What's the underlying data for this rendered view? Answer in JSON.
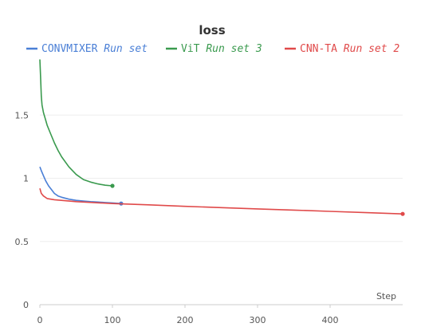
{
  "chart_data": {
    "type": "line",
    "title": "loss",
    "xlabel": "Step",
    "ylabel": "",
    "xlim": [
      0,
      500
    ],
    "ylim": [
      0,
      2
    ],
    "x_ticks": [
      0,
      100,
      200,
      300,
      400
    ],
    "y_ticks": [
      0,
      0.5,
      1,
      1.5
    ],
    "x_tick_labels": [
      "0",
      "100",
      "200",
      "300",
      "400"
    ],
    "y_tick_labels": [
      "0",
      "0.5",
      "1",
      "1.5"
    ],
    "grid": true,
    "legend_position": "top",
    "series": [
      {
        "name": "CONVMIXER",
        "run": "Run set",
        "color": "#4a7fd6",
        "x": [
          0,
          2,
          5,
          8,
          12,
          16,
          20,
          25,
          30,
          40,
          50,
          60,
          70,
          80,
          90,
          100,
          112
        ],
        "y": [
          1.09,
          1.06,
          1.02,
          0.98,
          0.94,
          0.91,
          0.88,
          0.86,
          0.85,
          0.835,
          0.825,
          0.82,
          0.815,
          0.812,
          0.808,
          0.805,
          0.8
        ]
      },
      {
        "name": "ViT",
        "run": "Run set 3",
        "color": "#3a9a4e",
        "x": [
          0,
          1,
          2,
          3,
          5,
          8,
          10,
          15,
          20,
          25,
          30,
          40,
          50,
          60,
          70,
          80,
          90,
          100
        ],
        "y": [
          1.94,
          1.8,
          1.65,
          1.58,
          1.52,
          1.46,
          1.42,
          1.35,
          1.28,
          1.22,
          1.17,
          1.09,
          1.03,
          0.99,
          0.97,
          0.955,
          0.945,
          0.94
        ]
      },
      {
        "name": "CNN-TA",
        "run": "Run set 2",
        "color": "#e04a4a",
        "x": [
          0,
          2,
          5,
          10,
          20,
          50,
          100,
          150,
          200,
          250,
          300,
          350,
          400,
          450,
          500
        ],
        "y": [
          0.92,
          0.88,
          0.86,
          0.84,
          0.83,
          0.815,
          0.8,
          0.79,
          0.778,
          0.768,
          0.758,
          0.748,
          0.738,
          0.728,
          0.718
        ]
      }
    ]
  }
}
